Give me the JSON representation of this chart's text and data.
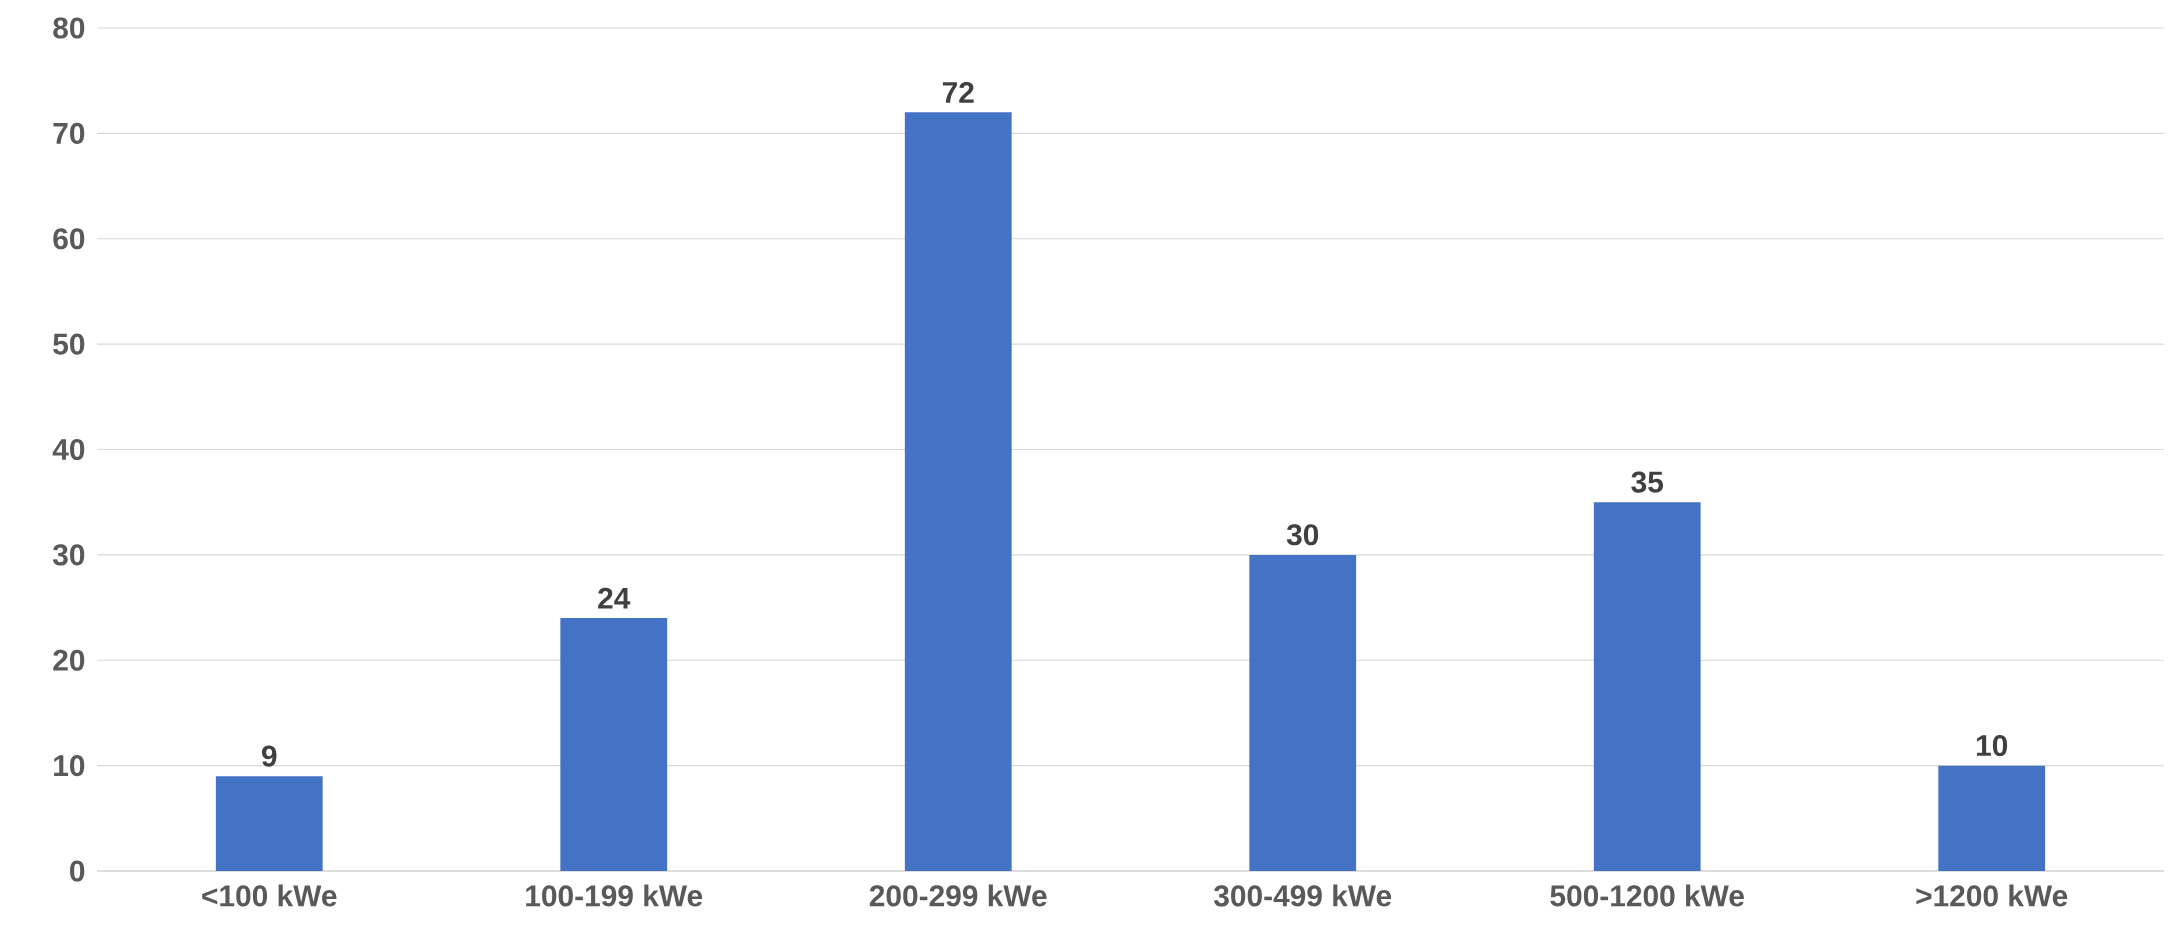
{
  "chart_data": {
    "type": "bar",
    "categories": [
      "<100 kWe",
      "100-199 kWe",
      "200-299 kWe",
      "300-499 kWe",
      "500-1200 kWe",
      ">1200 kWe"
    ],
    "values": [
      9,
      24,
      72,
      30,
      35,
      10
    ],
    "color": "#4472c4",
    "ylim": [
      0,
      80
    ],
    "yticks": [
      0,
      10,
      20,
      30,
      40,
      50,
      60,
      70,
      80
    ],
    "grid": "y",
    "data_labels": true
  }
}
